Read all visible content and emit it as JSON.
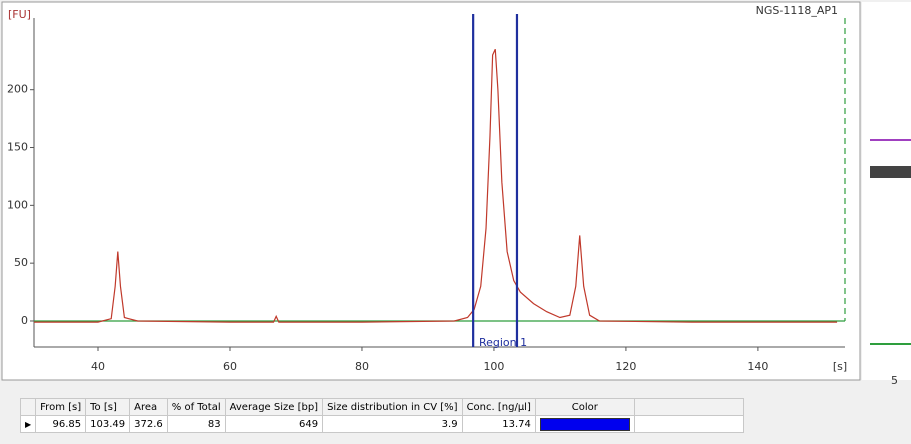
{
  "chart_data": {
    "type": "line",
    "sample": "NGS-1118_AP1",
    "ylabel": "[FU]",
    "xlabel": "[s]",
    "x": [
      30.3,
      40,
      42,
      42.6,
      43,
      43.4,
      44,
      46,
      60,
      66.6,
      67,
      67.4,
      80,
      94,
      96,
      97,
      98,
      98.8,
      99.4,
      99.8,
      100.2,
      100.6,
      101.2,
      102,
      103,
      104,
      106,
      108,
      110,
      111.5,
      112.4,
      113,
      113.6,
      114.5,
      116,
      130,
      145,
      152
    ],
    "values": [
      -1,
      -1,
      2,
      30,
      60,
      30,
      3,
      0,
      -1,
      -1,
      4,
      -1,
      -1,
      0,
      3,
      10,
      30,
      80,
      160,
      230,
      235,
      200,
      120,
      60,
      35,
      25,
      15,
      8,
      3,
      5,
      30,
      74,
      30,
      5,
      0,
      -1,
      -1,
      -1
    ],
    "color": "#c0392b",
    "baseline_color": "#2e9e3e",
    "region_color": "#1f2f9e",
    "region_label": "Region 1",
    "xlim": [
      30.3,
      153.2
    ],
    "ylim": [
      -22.5,
      262
    ],
    "xticks": [
      40,
      60,
      80,
      100,
      120,
      140
    ],
    "yticks": [
      0,
      50,
      100,
      150,
      200
    ]
  },
  "table": {
    "columns": [
      "From [s]",
      "To [s]",
      "Area",
      "% of Total",
      "Average Size [bp]",
      "Size distribution in CV [%]",
      "Conc. [ng/µl]",
      "Color"
    ],
    "rows": [
      [
        96.85,
        103.49,
        372.6,
        83,
        649,
        3.9,
        13.74
      ]
    ],
    "row_colors": [
      "#0000ee"
    ]
  },
  "gel": {
    "lane_label": "5"
  }
}
